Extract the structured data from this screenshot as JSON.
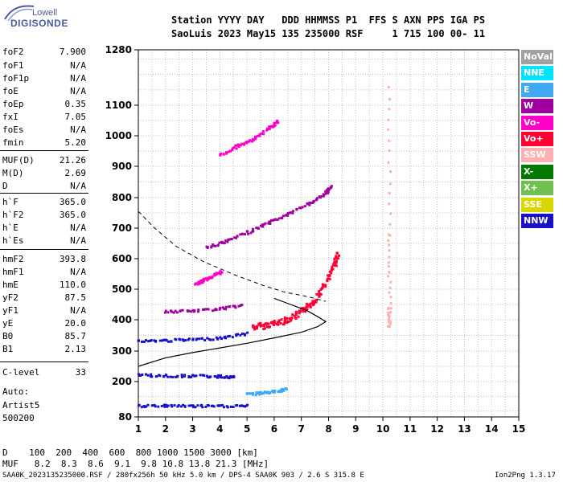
{
  "logo": {
    "top": "Lowell",
    "bottom": "DIGISONDE"
  },
  "header": {
    "row1": "Station YYYY DAY   DDD HHMMSS P1  FFS S AXN PPS IGA PS",
    "row2": "SaoLuis 2023 May15 135 235000 RSF     1 715 100 00- 11"
  },
  "params": [
    {
      "k": "foF2",
      "v": "7.900"
    },
    {
      "k": "foF1",
      "v": "N/A"
    },
    {
      "k": "foF1p",
      "v": "N/A"
    },
    {
      "k": "foE",
      "v": "N/A"
    },
    {
      "k": "foEp",
      "v": "0.35"
    },
    {
      "k": "fxI",
      "v": "7.05"
    },
    {
      "k": "foEs",
      "v": "N/A"
    },
    {
      "k": "fmin",
      "v": "5.20"
    },
    {
      "k": "MUF(D)",
      "v": "21.26"
    },
    {
      "k": "M(D)",
      "v": "2.69"
    },
    {
      "k": "D",
      "v": "N/A"
    },
    {
      "k": "h`F",
      "v": "365.0"
    },
    {
      "k": "h`F2",
      "v": "365.0"
    },
    {
      "k": "h`E",
      "v": "N/A"
    },
    {
      "k": "h`Es",
      "v": "N/A"
    },
    {
      "k": "hmF2",
      "v": "393.8"
    },
    {
      "k": "hmF1",
      "v": "N/A"
    },
    {
      "k": "hmE",
      "v": "110.0"
    },
    {
      "k": "yF2",
      "v": "87.5"
    },
    {
      "k": "yF1",
      "v": "N/A"
    },
    {
      "k": "yE",
      "v": "20.0"
    },
    {
      "k": "B0",
      "v": "85.7"
    },
    {
      "k": "B1",
      "v": "2.13"
    },
    {
      "k": "C-level",
      "v": "33"
    }
  ],
  "auto": {
    "line1": "Auto:",
    "line2": "Artist5",
    "line3": "500200"
  },
  "legend": [
    {
      "label": "NoVal",
      "color": "#a0a0a0"
    },
    {
      "label": "NNE",
      "color": "#00e5ff"
    },
    {
      "label": "E",
      "color": "#3fa9f5"
    },
    {
      "label": "W",
      "color": "#a000a0"
    },
    {
      "label": "Vo-",
      "color": "#ff00c8"
    },
    {
      "label": "Vo+",
      "color": "#ff0033"
    },
    {
      "label": "SSW",
      "color": "#ffb0b0"
    },
    {
      "label": "X-",
      "color": "#007a00"
    },
    {
      "label": "X+",
      "color": "#70c050"
    },
    {
      "label": "SSE",
      "color": "#d8d800"
    },
    {
      "label": "NNW",
      "color": "#1a10c8"
    }
  ],
  "footer": {
    "d_row": "D    100  200  400  600  800 1000 1500 3000 [km]",
    "muf_row": "MUF   8.2  8.3  8.6  9.1  9.8 10.8 13.8 21.3 [MHz]",
    "file_row": "SAA0K_2023135235000.RSF / 280fx256h 50 kHz 5.0 km / DPS-4 SAA0K 903 / 2.6 S 315.8 E",
    "version": "Ion2Png 1.3.17"
  },
  "chart_data": {
    "type": "scatter",
    "xlim": [
      1,
      15
    ],
    "ylim": [
      80,
      1280
    ],
    "x_ticks": [
      1,
      2,
      3,
      4,
      5,
      6,
      7,
      8,
      9,
      10,
      11,
      12,
      13,
      14,
      15
    ],
    "y_ticks": [
      80,
      200,
      300,
      400,
      500,
      600,
      700,
      800,
      900,
      1000,
      1100,
      1280
    ],
    "xlabel": "",
    "ylabel": "",
    "series": [
      {
        "color_key": "Vo+",
        "points": [
          [
            5.2,
            380
          ],
          [
            5.6,
            385
          ],
          [
            6.0,
            392
          ],
          [
            6.4,
            402
          ],
          [
            6.8,
            418
          ],
          [
            7.1,
            438
          ],
          [
            7.4,
            462
          ],
          [
            7.7,
            500
          ],
          [
            8.0,
            545
          ],
          [
            8.2,
            590
          ],
          [
            8.3,
            620
          ]
        ]
      },
      {
        "color_key": "W",
        "points": [
          [
            3.5,
            640
          ],
          [
            4.2,
            660
          ],
          [
            5.0,
            690
          ],
          [
            5.8,
            722
          ],
          [
            6.5,
            750
          ],
          [
            7.2,
            782
          ],
          [
            7.8,
            812
          ],
          [
            8.1,
            838
          ]
        ]
      },
      {
        "color_key": "Vo-",
        "points": [
          [
            3.1,
            520
          ],
          [
            3.4,
            535
          ],
          [
            3.8,
            550
          ],
          [
            4.0,
            560
          ]
        ]
      },
      {
        "color_key": "Vo-",
        "points": [
          [
            4.0,
            940
          ],
          [
            4.6,
            970
          ],
          [
            5.2,
            990
          ],
          [
            5.8,
            1030
          ],
          [
            6.1,
            1050
          ]
        ]
      },
      {
        "color_key": "NNW",
        "points": [
          [
            1.0,
            335
          ],
          [
            2.0,
            337
          ],
          [
            3.0,
            340
          ],
          [
            4.0,
            345
          ],
          [
            5.0,
            360
          ]
        ]
      },
      {
        "color_key": "NNW",
        "points": [
          [
            1.0,
            225
          ],
          [
            2.0,
            222
          ],
          [
            3.0,
            222
          ],
          [
            4.0,
            220
          ],
          [
            4.5,
            218
          ]
        ]
      },
      {
        "color_key": "NNW",
        "points": [
          [
            1.0,
            120
          ],
          [
            2.0,
            122
          ],
          [
            3.0,
            120
          ],
          [
            4.0,
            120
          ],
          [
            5.0,
            122
          ]
        ]
      },
      {
        "color_key": "E",
        "points": [
          [
            5.0,
            160
          ],
          [
            5.5,
            165
          ],
          [
            6.0,
            170
          ],
          [
            6.4,
            178
          ]
        ]
      },
      {
        "color_key": "W",
        "points": [
          [
            2.0,
            430
          ],
          [
            3.0,
            432
          ],
          [
            4.0,
            440
          ],
          [
            4.8,
            450
          ]
        ]
      },
      {
        "color_key": "SSW",
        "points": [
          [
            10.2,
            380
          ],
          [
            10.2,
            440
          ],
          [
            10.2,
            680
          ],
          [
            10.2,
            1160
          ]
        ]
      }
    ],
    "profile_solid": [
      [
        1.0,
        250
      ],
      [
        2.0,
        278
      ],
      [
        3.0,
        295
      ],
      [
        4.0,
        310
      ],
      [
        5.0,
        325
      ],
      [
        6.0,
        342
      ],
      [
        7.0,
        360
      ],
      [
        7.6,
        378
      ],
      [
        7.9,
        393.8
      ],
      [
        7.6,
        410
      ],
      [
        7.2,
        430
      ],
      [
        6.6,
        450
      ],
      [
        6.0,
        470
      ]
    ],
    "profile_dashed": [
      [
        1.0,
        755
      ],
      [
        1.6,
        700
      ],
      [
        2.4,
        640
      ],
      [
        3.4,
        590
      ],
      [
        4.6,
        545
      ],
      [
        5.6,
        512
      ],
      [
        6.4,
        490
      ],
      [
        7.0,
        480
      ],
      [
        7.5,
        470
      ],
      [
        7.9,
        460
      ]
    ]
  }
}
